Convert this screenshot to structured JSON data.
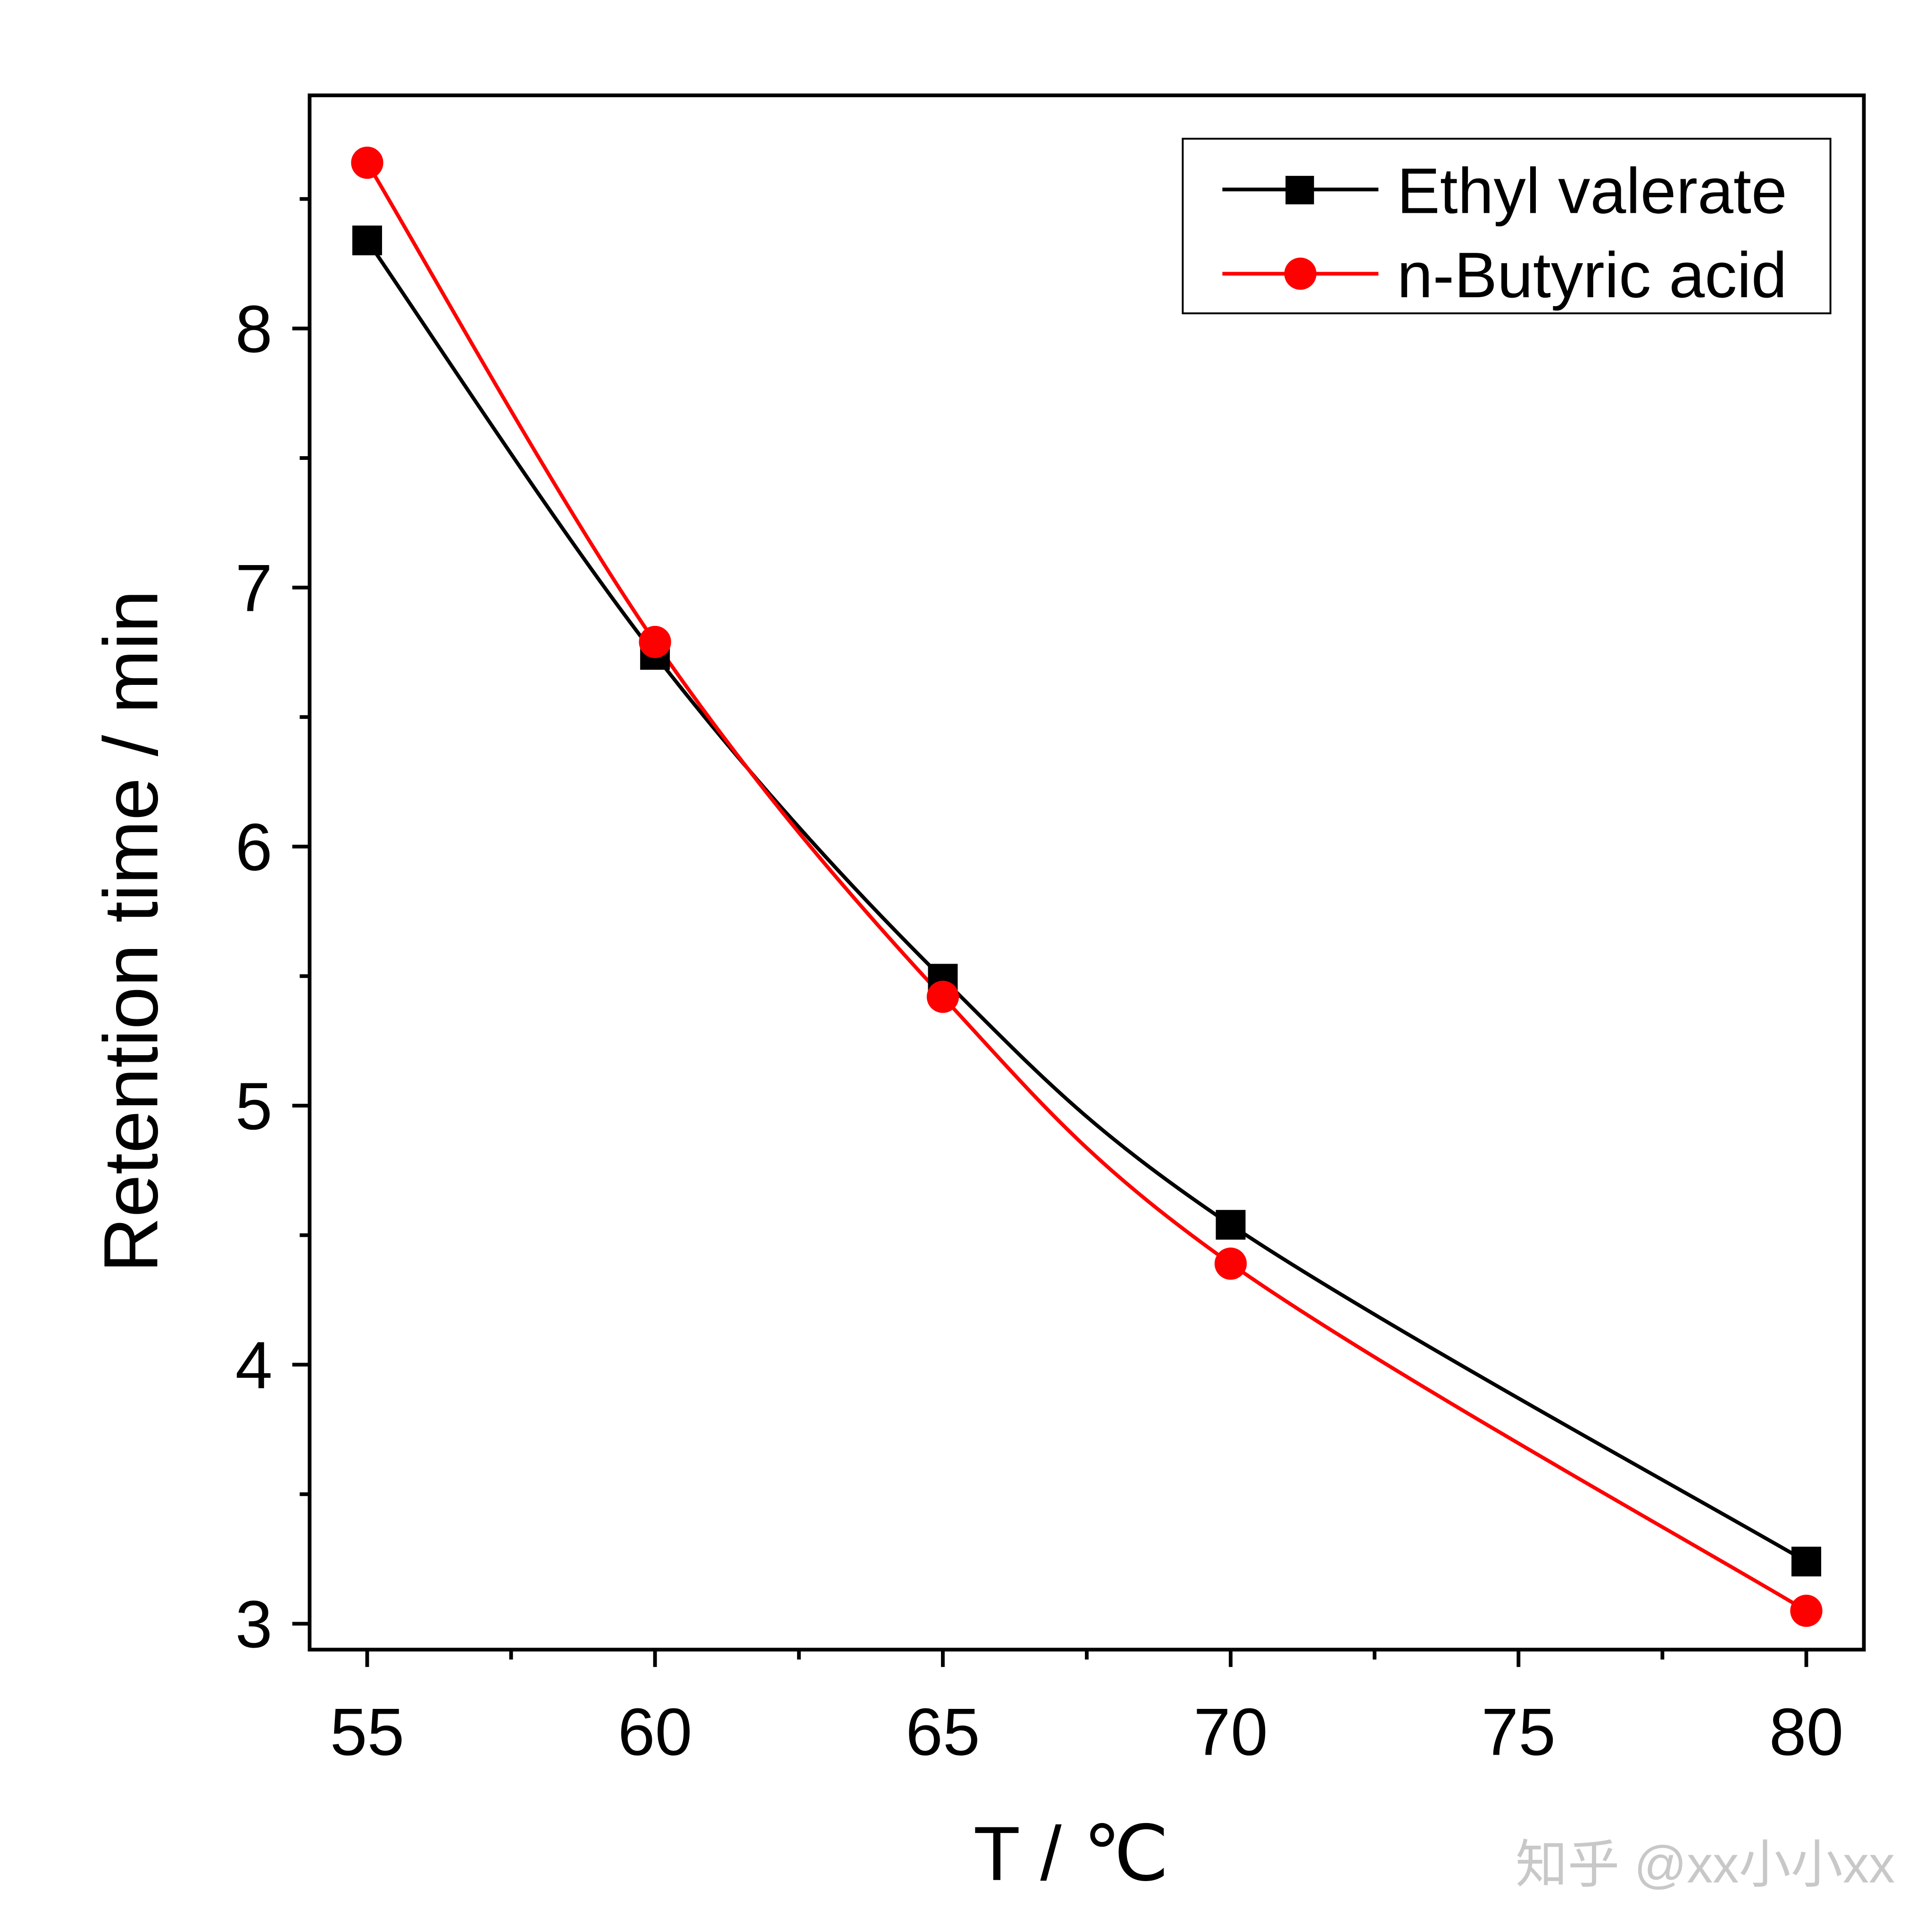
{
  "chart_data": {
    "type": "line",
    "title": "",
    "xlabel": "T / ℃",
    "ylabel": "Retention time / min",
    "xlim": [
      54,
      81
    ],
    "ylim": [
      2.9,
      8.9
    ],
    "xticks": [
      55,
      60,
      65,
      70,
      75,
      80
    ],
    "xtick_labels": [
      "55",
      "60",
      "65",
      "70",
      "75",
      "80"
    ],
    "xminor": [
      57.5,
      62.5,
      67.5,
      72.5,
      77.5
    ],
    "yticks": [
      3,
      4,
      5,
      6,
      7,
      8
    ],
    "ytick_labels": [
      "3",
      "4",
      "5",
      "6",
      "7",
      "8"
    ],
    "yminor": [
      3.5,
      4.5,
      5.5,
      6.5,
      7.5,
      8.5
    ],
    "grid": false,
    "legend_position": "top-right",
    "x": [
      55,
      60,
      65,
      70,
      80
    ],
    "series": [
      {
        "name": "Ethyl valerate",
        "color": "#000000",
        "marker": "square",
        "values": [
          8.34,
          6.74,
          5.49,
          4.54,
          3.24
        ]
      },
      {
        "name": "n-Butyric acid",
        "color": "#ff0000",
        "marker": "circle",
        "values": [
          8.64,
          6.79,
          5.42,
          4.39,
          3.05
        ]
      }
    ]
  },
  "watermark": "知乎 @xx小小xx"
}
